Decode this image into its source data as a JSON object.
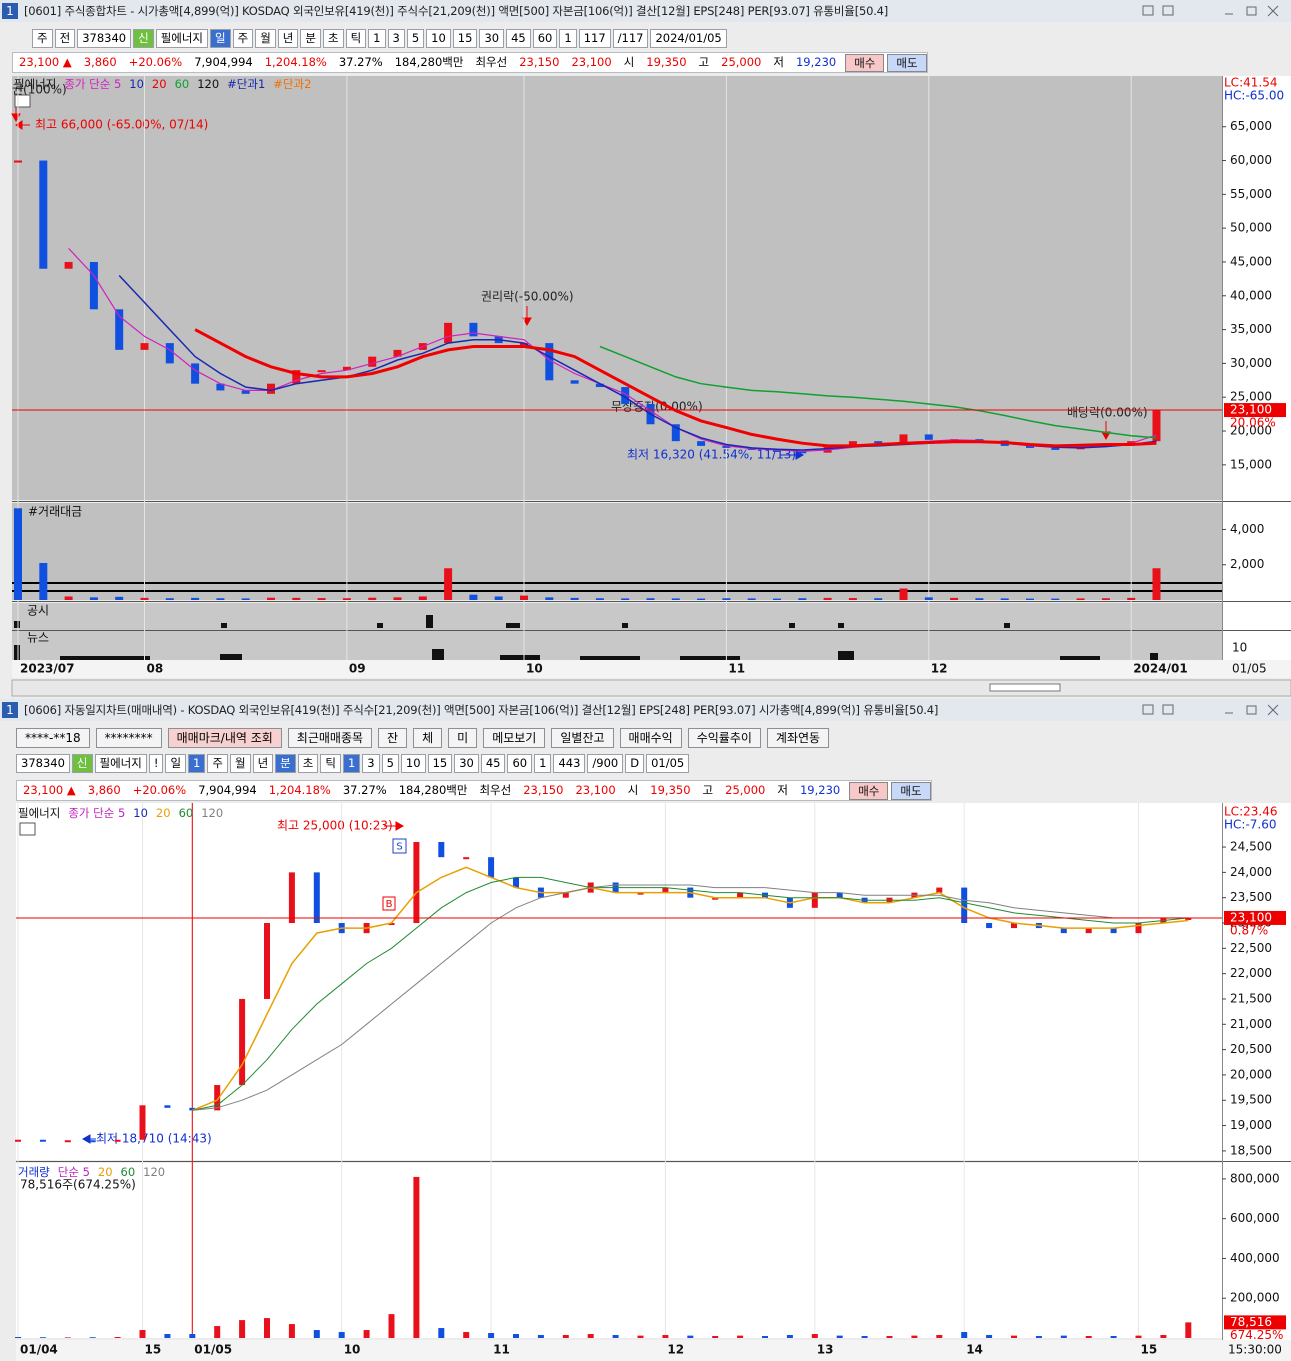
{
  "windows": [
    {
      "number": "1",
      "title": "[0601] 주식종합차트 - 시가총액[4,899(억)] KOSDAQ 외국인보유[419(천)] 주식수[21,209(천)] 액면[500] 자본금[106(억)] 결산[12월] EPS[248] PER[93.07] 유통비율[50.4]",
      "toolbar": [
        "주",
        "전",
        "378340",
        "신",
        "필에너지",
        "일",
        "주",
        "월",
        "년",
        "분",
        "초",
        "틱",
        "1",
        "3",
        "5",
        "10",
        "15",
        "30",
        "45",
        "60",
        "1",
        "117",
        "/117",
        "2024/01/05"
      ],
      "info": [
        "23,100 ▲",
        "3,860",
        "+20.06%",
        "7,904,994",
        "1,204.18%",
        "37.27%",
        "184,280백만",
        "최우선",
        "23,150",
        "23,100",
        "시",
        "19,350",
        "고",
        "25,000",
        "저",
        "19,230",
        "매수",
        "매도"
      ],
      "panels": [
        "공시",
        "뉴스"
      ],
      "news_tick": 10
    },
    {
      "number": "1",
      "title": "[0606] 자동일지차트(매매내역) - KOSDAQ 외국인보유[419(천)] 주식수[21,209(천)] 액면[500] 자본금[106(억)] 결산[12월] EPS[248] PER[93.07] 시가총액[4,899(억)] 유통비율[50.4]",
      "buttons": [
        "****-**18",
        "********",
        "매매마크/내역 조회",
        "최근매매종목",
        "잔",
        "체",
        "미",
        "메모보기",
        "일별잔고",
        "매매수익",
        "수익률추이",
        "계좌연동"
      ],
      "toolbar": [
        "378340",
        "신",
        "필에너지",
        "!",
        "일",
        "1",
        "주",
        "월",
        "년",
        "분",
        "초",
        "틱",
        "1",
        "3",
        "5",
        "10",
        "15",
        "30",
        "45",
        "60",
        "1",
        "443",
        "/900",
        "D",
        "01/05"
      ],
      "info": [
        "23,100 ▲",
        "3,860",
        "+20.06%",
        "7,904,994",
        "1,204.18%",
        "37.27%",
        "184,280백만",
        "최우선",
        "23,150",
        "23,100",
        "시",
        "19,350",
        "고",
        "25,000",
        "저",
        "19,230",
        "매수",
        "매도"
      ]
    }
  ],
  "chart_data": [
    {
      "type": "candlestick",
      "categories": [
        "2023/07",
        null,
        null,
        null,
        null,
        "08",
        null,
        null,
        null,
        null,
        null,
        null,
        null,
        "09",
        null,
        null,
        null,
        null,
        null,
        null,
        "10",
        null,
        null,
        null,
        null,
        null,
        null,
        null,
        "11",
        null,
        null,
        null,
        null,
        null,
        null,
        null,
        "12",
        null,
        null,
        null,
        null,
        null,
        null,
        null,
        "2024/01",
        null
      ],
      "series": [
        {
          "name": "필에너지",
          "color": "#e8101a",
          "values": [
            60000,
            44000,
            45000,
            38000,
            32000,
            33000,
            30000,
            27000,
            26000,
            25500,
            27000,
            29000,
            29000,
            29500,
            31000,
            32000,
            33000,
            36000,
            34000,
            33000,
            33000,
            27500,
            27000,
            26500,
            24000,
            21000,
            18500,
            17800,
            17500,
            17200,
            17000,
            16800,
            17800,
            18500,
            18300,
            19500,
            18700,
            18800,
            18600,
            17800,
            17500,
            17300,
            17800,
            18000,
            18500,
            23100
          ]
        },
        {
          "name": "종가 단순 5",
          "color": "#d020c0",
          "values": [
            null,
            null,
            47000,
            43000,
            37000,
            34000,
            32000,
            29000,
            27000,
            26000,
            26000,
            27500,
            28500,
            29000,
            30000,
            31000,
            32500,
            34000,
            34500,
            34000,
            33500,
            30500,
            28500,
            27000,
            25500,
            23000,
            20500,
            18800,
            17800,
            17400,
            17200,
            17000,
            17200,
            17600,
            17900,
            18300,
            18500,
            18700,
            18600,
            18200,
            17800,
            17600,
            17600,
            17800,
            18200,
            19400
          ]
        },
        {
          "name": "10",
          "color": "#1828b0",
          "values": [
            null,
            null,
            null,
            null,
            43000,
            39000,
            35000,
            31000,
            28500,
            26500,
            26000,
            27000,
            27500,
            28000,
            29000,
            30500,
            31500,
            33000,
            33500,
            33500,
            33000,
            31000,
            29000,
            27000,
            25000,
            22500,
            20500,
            19000,
            18000,
            17500,
            17300,
            17200,
            17400,
            17700,
            17800,
            18000,
            18200,
            18500,
            18500,
            18200,
            17900,
            17600,
            17500,
            17700,
            18000,
            18500
          ]
        },
        {
          "name": "20",
          "color": "#f00000",
          "values": [
            null,
            null,
            null,
            null,
            null,
            null,
            null,
            35000,
            33000,
            31000,
            29500,
            28500,
            28000,
            28000,
            28500,
            29500,
            31000,
            32000,
            32500,
            32500,
            32500,
            32000,
            31000,
            29000,
            27000,
            25000,
            23000,
            21500,
            20500,
            19500,
            18800,
            18200,
            17800,
            17800,
            18000,
            18200,
            18300,
            18400,
            18400,
            18300,
            18000,
            17800,
            17900,
            18000,
            18000,
            18200
          ]
        },
        {
          "name": "60",
          "color": "#10a030",
          "values": [
            null,
            null,
            null,
            null,
            null,
            null,
            null,
            null,
            null,
            null,
            null,
            null,
            null,
            null,
            null,
            null,
            null,
            null,
            null,
            null,
            null,
            null,
            null,
            32500,
            31000,
            29500,
            28000,
            27000,
            26500,
            26000,
            25800,
            25500,
            25200,
            25000,
            24700,
            24400,
            24000,
            23600,
            23000,
            22300,
            21500,
            20800,
            20300,
            19800,
            19300,
            19000
          ]
        }
      ],
      "down_color": "#1050e0",
      "legend_extra": [
        "120",
        "#단과1",
        "#단과2"
      ],
      "ylim": [
        9800,
        72500
      ],
      "yticks": [
        {
          "value": 15000,
          "label": "15,000"
        },
        {
          "value": 20000,
          "label": "20,000"
        },
        {
          "value": 25000,
          "label": "25,000"
        },
        {
          "value": 30000,
          "label": "30,000"
        },
        {
          "value": 35000,
          "label": "35,000"
        },
        {
          "value": 40000,
          "label": "40,000"
        },
        {
          "value": 45000,
          "label": "45,000"
        },
        {
          "value": 50000,
          "label": "50,000"
        },
        {
          "value": 55000,
          "label": "55,000"
        },
        {
          "value": 60000,
          "label": "60,000"
        },
        {
          "value": 65000,
          "label": "65,000"
        }
      ],
      "price_line": {
        "value": 23100,
        "label": "23,100"
      },
      "change_label": "20.06%",
      "range_labels": [
        "LC:41.54",
        "HC:-65.00"
      ],
      "annotations": [
        "권(100%)",
        "최고 66,000 (-65.00%, 07/14)",
        "권리락(-50.00%)",
        "무상증자(0.00%)",
        "배당락(0.00%)",
        "최저 16,320 (41.54%, 11/13)"
      ],
      "end_label": "01/05"
    },
    {
      "type": "bar",
      "title": "#거래대금",
      "values": [
        5200,
        2100,
        200,
        150,
        180,
        120,
        100,
        120,
        100,
        90,
        130,
        120,
        110,
        100,
        130,
        150,
        200,
        1800,
        300,
        200,
        250,
        150,
        120,
        100,
        90,
        100,
        90,
        80,
        100,
        90,
        80,
        100,
        120,
        110,
        100,
        650,
        150,
        120,
        100,
        90,
        80,
        80,
        90,
        100,
        120,
        1800
      ],
      "ylim": [
        0,
        5500
      ],
      "yticks": [
        {
          "value": 2000,
          "label": "2,000"
        },
        {
          "value": 4000,
          "label": "4,000"
        }
      ]
    },
    {
      "type": "candlestick",
      "categories": [
        "01/04",
        null,
        null,
        null,
        null,
        "15",
        null,
        "01/05",
        null,
        null,
        null,
        null,
        null,
        "10",
        null,
        null,
        null,
        null,
        null,
        "11",
        null,
        null,
        null,
        null,
        null,
        null,
        "12",
        null,
        null,
        null,
        null,
        null,
        "13",
        null,
        null,
        null,
        null,
        null,
        "14",
        null,
        null,
        null,
        null,
        null,
        null,
        "15",
        null,
        null
      ],
      "series": [
        {
          "name": "필에너지",
          "color": "#e8101a",
          "values": [
            18720,
            18700,
            18710,
            18700,
            18720,
            19400,
            19350,
            19300,
            19800,
            21500,
            23000,
            24000,
            23000,
            22800,
            23000,
            23000,
            24600,
            24300,
            24300,
            23900,
            23700,
            23500,
            23600,
            23800,
            23600,
            23600,
            23700,
            23500,
            23500,
            23600,
            23500,
            23300,
            23600,
            23500,
            23400,
            23500,
            23600,
            23700,
            23000,
            22900,
            23000,
            22900,
            22800,
            22900,
            22800,
            23000,
            23100,
            23100
          ]
        },
        {
          "name": "20",
          "color": "#e8a000",
          "values": [
            null,
            null,
            null,
            null,
            null,
            null,
            null,
            19300,
            19500,
            20200,
            21200,
            22200,
            22800,
            22900,
            22900,
            23000,
            23600,
            23900,
            24100,
            23900,
            23700,
            23600,
            23600,
            23700,
            23600,
            23600,
            23600,
            23600,
            23500,
            23500,
            23500,
            23400,
            23500,
            23500,
            23400,
            23400,
            23500,
            23600,
            23300,
            23100,
            23000,
            22950,
            22900,
            22900,
            22900,
            22950,
            23000,
            23050
          ]
        },
        {
          "name": "60",
          "color": "#208a30",
          "values": [
            null,
            null,
            null,
            null,
            null,
            null,
            null,
            19300,
            19400,
            19800,
            20300,
            20900,
            21400,
            21800,
            22200,
            22500,
            22900,
            23300,
            23600,
            23800,
            23900,
            23900,
            23800,
            23700,
            23700,
            23700,
            23700,
            23650,
            23600,
            23600,
            23550,
            23500,
            23500,
            23500,
            23450,
            23450,
            23450,
            23500,
            23400,
            23300,
            23200,
            23150,
            23100,
            23050,
            23000,
            23000,
            23050,
            23100
          ]
        },
        {
          "name": "120",
          "color": "#808080",
          "values": [
            null,
            null,
            null,
            null,
            null,
            null,
            null,
            19300,
            19350,
            19500,
            19700,
            20000,
            20300,
            20600,
            21000,
            21400,
            21800,
            22200,
            22600,
            23000,
            23300,
            23500,
            23600,
            23700,
            23750,
            23750,
            23750,
            23750,
            23700,
            23700,
            23700,
            23650,
            23600,
            23600,
            23550,
            23550,
            23550,
            23550,
            23450,
            23400,
            23300,
            23250,
            23200,
            23150,
            23100,
            23100,
            23100,
            23100
          ]
        }
      ],
      "down_color": "#1050e0",
      "legend_extra": [
        "종가 단순 5",
        "10"
      ],
      "ylim": [
        18320,
        25370
      ],
      "yticks": [
        {
          "value": 18500,
          "label": "18,500"
        },
        {
          "value": 19000,
          "label": "19,000"
        },
        {
          "value": 19500,
          "label": "19,500"
        },
        {
          "value": 20000,
          "label": "20,000"
        },
        {
          "value": 20500,
          "label": "20,500"
        },
        {
          "value": 21000,
          "label": "21,000"
        },
        {
          "value": 21500,
          "label": "21,500"
        },
        {
          "value": 22000,
          "label": "22,000"
        },
        {
          "value": 22500,
          "label": "22,500"
        },
        {
          "value": 23000,
          "label": "23,000"
        },
        {
          "value": 23500,
          "label": "23,500"
        },
        {
          "value": 24000,
          "label": "24,000"
        },
        {
          "value": 24500,
          "label": "24,500"
        }
      ],
      "price_line": {
        "value": 23100,
        "label": "23,100"
      },
      "change_label": "0.87%",
      "range_labels": [
        "LC:23.46",
        "HC:-7.60"
      ],
      "annotations": [
        "최고 25,000 (10:23)",
        "최저 18,710 (14:43)"
      ],
      "trade_marks": [
        "S",
        "B"
      ],
      "end_label": "15:30:00"
    },
    {
      "type": "bar",
      "title": "거래량",
      "legend_extra": [
        "단순 5",
        "20",
        "60",
        "120"
      ],
      "summary": "78,516주(674.25%)",
      "values": [
        5000,
        4000,
        3000,
        4000,
        5000,
        40000,
        20000,
        20000,
        60000,
        90000,
        100000,
        70000,
        40000,
        30000,
        40000,
        120000,
        810000,
        50000,
        30000,
        25000,
        20000,
        15000,
        15000,
        20000,
        15000,
        12000,
        15000,
        12000,
        10000,
        12000,
        10000,
        15000,
        20000,
        12000,
        10000,
        10000,
        12000,
        15000,
        30000,
        15000,
        12000,
        10000,
        12000,
        10000,
        10000,
        12000,
        15000,
        78516
      ],
      "last_label": {
        "value": 78516,
        "label": "78,516"
      },
      "change_label": "674.25%",
      "ylim": [
        0,
        880000
      ],
      "yticks": [
        {
          "value": 200000,
          "label": "200,000"
        },
        {
          "value": 400000,
          "label": "400,000"
        },
        {
          "value": 600000,
          "label": "600,000"
        },
        {
          "value": 800000,
          "label": "800,000"
        }
      ]
    }
  ]
}
